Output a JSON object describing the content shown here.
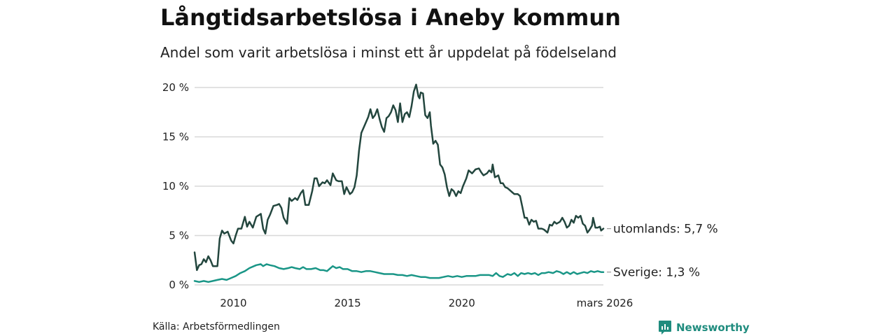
{
  "header": {
    "title": "Långtidsarbetslösa i Aneby kommun",
    "subtitle": "Andel som varit arbetslösa i minst ett år uppdelat på födelseland"
  },
  "footer": {
    "source": "Källa: Arbetsförmedlingen",
    "brand": "Newsworthy",
    "brand_icon": "newsworthy-logo-icon"
  },
  "colors": {
    "utomlands": "#23463e",
    "sverige": "#1a9687",
    "grid": "#d8d8d8",
    "brand": "#1f8c7e"
  },
  "chart_data": {
    "type": "line",
    "title": "Långtidsarbetslösa i Aneby kommun",
    "subtitle": "Andel som varit arbetslösa i minst ett år uppdelat på födelseland",
    "xlabel": "",
    "ylabel": "",
    "xlim": [
      2008.3,
      2026.2
    ],
    "ylim": [
      0,
      20
    ],
    "grid": true,
    "y_ticks": [
      {
        "value": 0,
        "label": "0 %"
      },
      {
        "value": 5,
        "label": "5 %"
      },
      {
        "value": 10,
        "label": "10 %"
      },
      {
        "value": 15,
        "label": "15 %"
      },
      {
        "value": 20,
        "label": "20 %"
      }
    ],
    "x_ticks": [
      {
        "value": 2010,
        "label": "2010"
      },
      {
        "value": 2015,
        "label": "2015"
      },
      {
        "value": 2020,
        "label": "2020"
      },
      {
        "value": 2026.2,
        "label": "mars 2026"
      }
    ],
    "series": [
      {
        "name": "utomlands",
        "end_label": "utomlands: 5,7 %",
        "points": [
          [
            2008.3,
            3.3
          ],
          [
            2008.4,
            1.5
          ],
          [
            2008.5,
            2.0
          ],
          [
            2008.6,
            2.1
          ],
          [
            2008.7,
            2.6
          ],
          [
            2008.8,
            2.3
          ],
          [
            2008.9,
            2.9
          ],
          [
            2009.0,
            2.5
          ],
          [
            2009.1,
            1.9
          ],
          [
            2009.3,
            1.9
          ],
          [
            2009.4,
            4.7
          ],
          [
            2009.5,
            5.5
          ],
          [
            2009.6,
            5.2
          ],
          [
            2009.75,
            5.4
          ],
          [
            2009.9,
            4.5
          ],
          [
            2010.0,
            4.2
          ],
          [
            2010.1,
            5.0
          ],
          [
            2010.2,
            5.7
          ],
          [
            2010.35,
            5.7
          ],
          [
            2010.5,
            6.9
          ],
          [
            2010.6,
            5.9
          ],
          [
            2010.7,
            6.4
          ],
          [
            2010.85,
            5.8
          ],
          [
            2011.0,
            6.9
          ],
          [
            2011.2,
            7.2
          ],
          [
            2011.3,
            5.7
          ],
          [
            2011.4,
            5.2
          ],
          [
            2011.5,
            6.6
          ],
          [
            2011.6,
            7.1
          ],
          [
            2011.75,
            8.0
          ],
          [
            2011.9,
            8.1
          ],
          [
            2012.0,
            8.2
          ],
          [
            2012.1,
            7.8
          ],
          [
            2012.2,
            6.8
          ],
          [
            2012.35,
            6.2
          ],
          [
            2012.45,
            8.8
          ],
          [
            2012.55,
            8.5
          ],
          [
            2012.7,
            8.8
          ],
          [
            2012.8,
            8.6
          ],
          [
            2012.95,
            9.3
          ],
          [
            2013.05,
            9.6
          ],
          [
            2013.15,
            8.1
          ],
          [
            2013.3,
            8.1
          ],
          [
            2013.45,
            9.5
          ],
          [
            2013.55,
            10.8
          ],
          [
            2013.65,
            10.8
          ],
          [
            2013.75,
            10.0
          ],
          [
            2013.9,
            10.4
          ],
          [
            2014.0,
            10.3
          ],
          [
            2014.1,
            10.6
          ],
          [
            2014.25,
            10.1
          ],
          [
            2014.35,
            11.3
          ],
          [
            2014.5,
            10.6
          ],
          [
            2014.6,
            10.5
          ],
          [
            2014.75,
            10.5
          ],
          [
            2014.85,
            9.2
          ],
          [
            2014.95,
            9.9
          ],
          [
            2015.1,
            9.2
          ],
          [
            2015.2,
            9.4
          ],
          [
            2015.3,
            9.9
          ],
          [
            2015.4,
            11.1
          ],
          [
            2015.5,
            13.6
          ],
          [
            2015.6,
            15.4
          ],
          [
            2015.75,
            16.2
          ],
          [
            2015.9,
            17.0
          ],
          [
            2016.0,
            17.8
          ],
          [
            2016.1,
            16.9
          ],
          [
            2016.2,
            17.2
          ],
          [
            2016.3,
            17.8
          ],
          [
            2016.4,
            16.8
          ],
          [
            2016.5,
            16.0
          ],
          [
            2016.6,
            15.5
          ],
          [
            2016.7,
            16.9
          ],
          [
            2016.8,
            17.1
          ],
          [
            2016.9,
            17.5
          ],
          [
            2017.0,
            18.2
          ],
          [
            2017.1,
            17.7
          ],
          [
            2017.2,
            16.5
          ],
          [
            2017.3,
            18.4
          ],
          [
            2017.4,
            16.5
          ],
          [
            2017.5,
            17.3
          ],
          [
            2017.6,
            17.5
          ],
          [
            2017.7,
            17.0
          ],
          [
            2017.8,
            18.1
          ],
          [
            2017.9,
            19.6
          ],
          [
            2018.0,
            20.3
          ],
          [
            2018.1,
            19.1
          ],
          [
            2018.15,
            18.9
          ],
          [
            2018.2,
            19.5
          ],
          [
            2018.3,
            19.4
          ],
          [
            2018.4,
            17.2
          ],
          [
            2018.5,
            16.9
          ],
          [
            2018.6,
            17.5
          ],
          [
            2018.65,
            16.1
          ],
          [
            2018.75,
            14.3
          ],
          [
            2018.85,
            14.6
          ],
          [
            2018.95,
            14.2
          ],
          [
            2019.05,
            12.2
          ],
          [
            2019.15,
            11.9
          ],
          [
            2019.25,
            11.2
          ],
          [
            2019.35,
            9.9
          ],
          [
            2019.45,
            9.0
          ],
          [
            2019.55,
            9.7
          ],
          [
            2019.65,
            9.5
          ],
          [
            2019.75,
            9.0
          ],
          [
            2019.85,
            9.5
          ],
          [
            2019.95,
            9.3
          ],
          [
            2020.05,
            10.0
          ],
          [
            2020.2,
            10.8
          ],
          [
            2020.3,
            11.6
          ],
          [
            2020.45,
            11.3
          ],
          [
            2020.6,
            11.7
          ],
          [
            2020.75,
            11.8
          ],
          [
            2020.85,
            11.4
          ],
          [
            2020.95,
            11.1
          ],
          [
            2021.1,
            11.3
          ],
          [
            2021.2,
            11.6
          ],
          [
            2021.3,
            11.4
          ],
          [
            2021.35,
            12.2
          ],
          [
            2021.45,
            10.9
          ],
          [
            2021.6,
            11.1
          ],
          [
            2021.7,
            10.3
          ],
          [
            2021.8,
            10.3
          ],
          [
            2021.9,
            9.9
          ],
          [
            2022.0,
            9.8
          ],
          [
            2022.1,
            9.6
          ],
          [
            2022.2,
            9.4
          ],
          [
            2022.3,
            9.2
          ],
          [
            2022.45,
            9.2
          ],
          [
            2022.55,
            9.0
          ],
          [
            2022.65,
            7.9
          ],
          [
            2022.75,
            6.8
          ],
          [
            2022.85,
            6.8
          ],
          [
            2022.95,
            6.1
          ],
          [
            2023.05,
            6.6
          ],
          [
            2023.15,
            6.4
          ],
          [
            2023.25,
            6.5
          ],
          [
            2023.35,
            5.7
          ],
          [
            2023.5,
            5.7
          ],
          [
            2023.6,
            5.6
          ],
          [
            2023.75,
            5.3
          ],
          [
            2023.85,
            6.1
          ],
          [
            2023.95,
            6.0
          ],
          [
            2024.05,
            6.4
          ],
          [
            2024.15,
            6.2
          ],
          [
            2024.3,
            6.4
          ],
          [
            2024.4,
            6.8
          ],
          [
            2024.5,
            6.4
          ],
          [
            2024.6,
            5.8
          ],
          [
            2024.7,
            6.0
          ],
          [
            2024.8,
            6.6
          ],
          [
            2024.9,
            6.3
          ],
          [
            2025.0,
            7.0
          ],
          [
            2025.1,
            6.8
          ],
          [
            2025.2,
            7.0
          ],
          [
            2025.3,
            6.2
          ],
          [
            2025.4,
            6.0
          ],
          [
            2025.5,
            5.3
          ],
          [
            2025.6,
            5.6
          ],
          [
            2025.7,
            6.0
          ],
          [
            2025.75,
            6.8
          ],
          [
            2025.85,
            5.8
          ],
          [
            2025.95,
            5.8
          ],
          [
            2026.05,
            5.9
          ],
          [
            2026.1,
            5.5
          ],
          [
            2026.2,
            5.7
          ]
        ]
      },
      {
        "name": "Sverige",
        "end_label": "Sverige: 1,3 %",
        "points": [
          [
            2008.3,
            0.4
          ],
          [
            2008.5,
            0.3
          ],
          [
            2008.7,
            0.4
          ],
          [
            2008.9,
            0.3
          ],
          [
            2009.1,
            0.4
          ],
          [
            2009.3,
            0.5
          ],
          [
            2009.5,
            0.6
          ],
          [
            2009.7,
            0.5
          ],
          [
            2009.9,
            0.7
          ],
          [
            2010.1,
            0.9
          ],
          [
            2010.3,
            1.2
          ],
          [
            2010.5,
            1.4
          ],
          [
            2010.7,
            1.7
          ],
          [
            2010.9,
            1.9
          ],
          [
            2011.0,
            2.0
          ],
          [
            2011.2,
            2.1
          ],
          [
            2011.3,
            1.9
          ],
          [
            2011.45,
            2.1
          ],
          [
            2011.6,
            2.0
          ],
          [
            2011.8,
            1.9
          ],
          [
            2012.0,
            1.7
          ],
          [
            2012.2,
            1.6
          ],
          [
            2012.4,
            1.7
          ],
          [
            2012.55,
            1.8
          ],
          [
            2012.7,
            1.7
          ],
          [
            2012.9,
            1.6
          ],
          [
            2013.05,
            1.8
          ],
          [
            2013.2,
            1.6
          ],
          [
            2013.4,
            1.6
          ],
          [
            2013.6,
            1.7
          ],
          [
            2013.8,
            1.5
          ],
          [
            2013.95,
            1.5
          ],
          [
            2014.1,
            1.4
          ],
          [
            2014.25,
            1.7
          ],
          [
            2014.35,
            1.9
          ],
          [
            2014.5,
            1.7
          ],
          [
            2014.65,
            1.8
          ],
          [
            2014.8,
            1.6
          ],
          [
            2015.0,
            1.6
          ],
          [
            2015.2,
            1.4
          ],
          [
            2015.4,
            1.4
          ],
          [
            2015.6,
            1.3
          ],
          [
            2015.8,
            1.4
          ],
          [
            2016.0,
            1.4
          ],
          [
            2016.2,
            1.3
          ],
          [
            2016.4,
            1.2
          ],
          [
            2016.6,
            1.1
          ],
          [
            2016.8,
            1.1
          ],
          [
            2017.0,
            1.1
          ],
          [
            2017.2,
            1.0
          ],
          [
            2017.4,
            1.0
          ],
          [
            2017.6,
            0.9
          ],
          [
            2017.8,
            1.0
          ],
          [
            2018.0,
            0.9
          ],
          [
            2018.2,
            0.8
          ],
          [
            2018.4,
            0.8
          ],
          [
            2018.6,
            0.7
          ],
          [
            2018.8,
            0.7
          ],
          [
            2019.0,
            0.7
          ],
          [
            2019.2,
            0.8
          ],
          [
            2019.4,
            0.9
          ],
          [
            2019.6,
            0.8
          ],
          [
            2019.8,
            0.9
          ],
          [
            2020.0,
            0.8
          ],
          [
            2020.2,
            0.9
          ],
          [
            2020.4,
            0.9
          ],
          [
            2020.6,
            0.9
          ],
          [
            2020.8,
            1.0
          ],
          [
            2021.0,
            1.0
          ],
          [
            2021.2,
            1.0
          ],
          [
            2021.35,
            0.9
          ],
          [
            2021.5,
            1.2
          ],
          [
            2021.65,
            0.9
          ],
          [
            2021.8,
            0.8
          ],
          [
            2022.0,
            1.1
          ],
          [
            2022.15,
            1.0
          ],
          [
            2022.3,
            1.2
          ],
          [
            2022.45,
            0.9
          ],
          [
            2022.6,
            1.2
          ],
          [
            2022.75,
            1.1
          ],
          [
            2022.9,
            1.2
          ],
          [
            2023.05,
            1.1
          ],
          [
            2023.2,
            1.2
          ],
          [
            2023.35,
            1.0
          ],
          [
            2023.5,
            1.2
          ],
          [
            2023.65,
            1.2
          ],
          [
            2023.8,
            1.3
          ],
          [
            2024.0,
            1.2
          ],
          [
            2024.15,
            1.4
          ],
          [
            2024.3,
            1.3
          ],
          [
            2024.45,
            1.1
          ],
          [
            2024.6,
            1.3
          ],
          [
            2024.75,
            1.1
          ],
          [
            2024.9,
            1.3
          ],
          [
            2025.05,
            1.1
          ],
          [
            2025.2,
            1.2
          ],
          [
            2025.35,
            1.3
          ],
          [
            2025.5,
            1.2
          ],
          [
            2025.65,
            1.4
          ],
          [
            2025.8,
            1.3
          ],
          [
            2025.95,
            1.4
          ],
          [
            2026.1,
            1.3
          ],
          [
            2026.2,
            1.3
          ]
        ]
      }
    ]
  }
}
